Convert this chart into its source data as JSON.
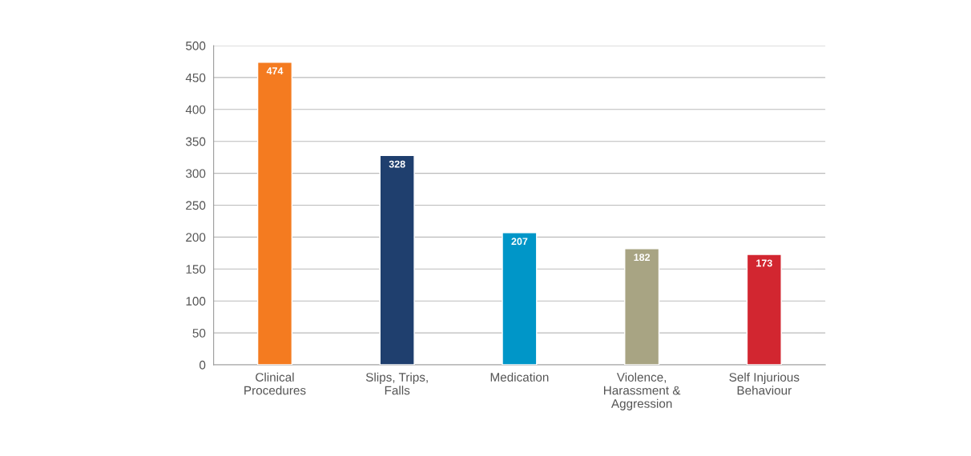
{
  "chart_data": {
    "type": "bar",
    "categories": [
      "Clinical\nProcedures",
      "Slips, Trips,\nFalls",
      "Medication",
      "Violence,\nHarassment &\nAggression",
      "Self Injurious\nBehaviour"
    ],
    "values": [
      474,
      328,
      207,
      182,
      173
    ],
    "colors": [
      "#f47b20",
      "#1f3f6e",
      "#0096c8",
      "#a8a483",
      "#d22630"
    ],
    "ylim": [
      0,
      500
    ],
    "yticks": [
      0,
      50,
      100,
      150,
      200,
      250,
      300,
      350,
      400,
      450,
      500
    ],
    "grid": "y",
    "data_labels": true,
    "legend": false
  }
}
